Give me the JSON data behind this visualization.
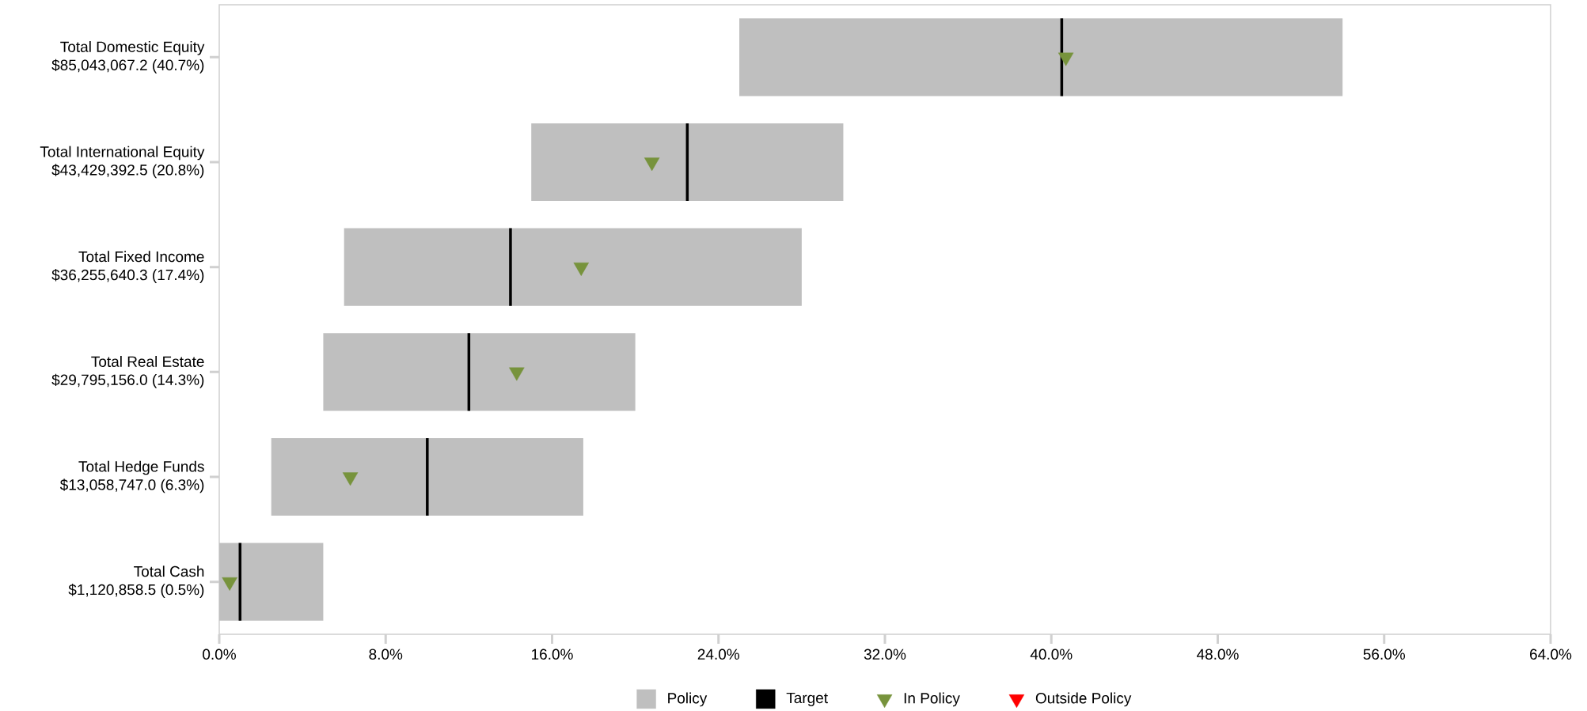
{
  "chart_data": {
    "type": "bar",
    "orientation": "horizontal",
    "legend": "bottom",
    "categories": [
      "Total Domestic Equity\n$85,043,067.2 (40.7%)",
      "Total International Equity\n$43,429,392.5 (20.8%)",
      "Total Fixed Income\n$36,255,640.3 (17.4%)",
      "Total Real Estate\n$29,795,156.0 (14.3%)",
      "Total Hedge Funds\n$13,058,747.0 (6.3%)",
      "Total Cash\n$1,120,858.5 (0.5%)"
    ],
    "xlim": [
      0,
      64
    ],
    "xticks": [
      {
        "value": 0,
        "label": "0.0%"
      },
      {
        "value": 8,
        "label": "8.0%"
      },
      {
        "value": 16,
        "label": "16.0%"
      },
      {
        "value": 24,
        "label": "24.0%"
      },
      {
        "value": 32,
        "label": "32.0%"
      },
      {
        "value": 40,
        "label": "40.0%"
      },
      {
        "value": 48,
        "label": "48.0%"
      },
      {
        "value": 56,
        "label": "56.0%"
      },
      {
        "value": 64,
        "label": "64.0%"
      }
    ],
    "series": [
      {
        "name": "Policy",
        "color": "#bfbfbf",
        "base": [
          25,
          15,
          6,
          5,
          2.5,
          0
        ],
        "values": [
          29,
          15,
          22,
          15,
          15,
          5
        ]
      },
      {
        "name": "Target",
        "type": "bar",
        "color": "#000000",
        "base": [
          40.5,
          22.5,
          14,
          12,
          10,
          1
        ],
        "values": [
          0,
          0,
          0,
          0,
          0,
          0
        ]
      },
      {
        "name": "In Policy",
        "type": "scatter",
        "marker": "triangle",
        "color": "#77933c",
        "values": [
          40.7,
          20.8,
          17.4,
          14.3,
          6.3,
          0.5
        ]
      },
      {
        "name": "Outside Policy",
        "type": "scatter",
        "marker": "triangle",
        "color": "#ff0000",
        "values": [
          null,
          null,
          null,
          null,
          null,
          null
        ]
      }
    ]
  }
}
